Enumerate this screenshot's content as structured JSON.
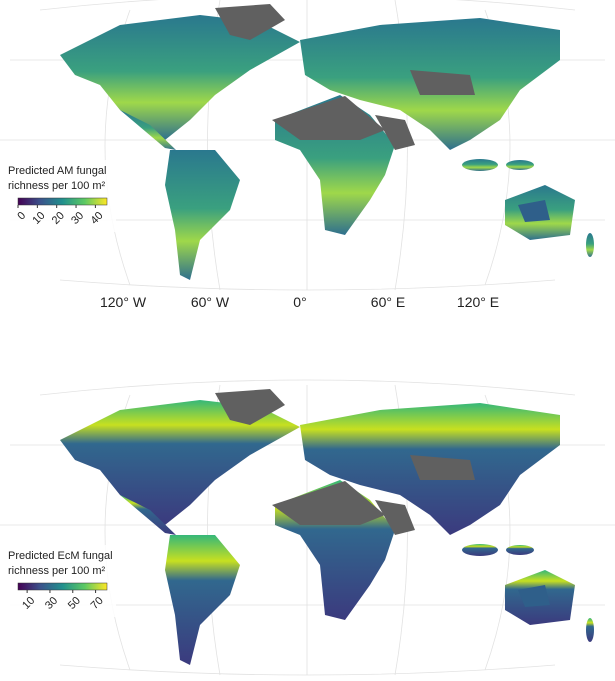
{
  "maps": [
    {
      "legend": {
        "title": [
          "Predicted AM fungal",
          "richness per 100 m²"
        ],
        "range": [
          0,
          46
        ],
        "ticks": [
          0,
          10,
          20,
          30,
          40
        ]
      }
    },
    {
      "legend": {
        "title": [
          "Predicted EcM fungal",
          "richness per 100 m²"
        ],
        "range": [
          2,
          80
        ],
        "ticks": [
          10,
          30,
          50,
          70
        ]
      }
    }
  ],
  "longitude_labels": [
    "120° W",
    "60° W",
    "0°",
    "60° E",
    "120° E"
  ]
}
